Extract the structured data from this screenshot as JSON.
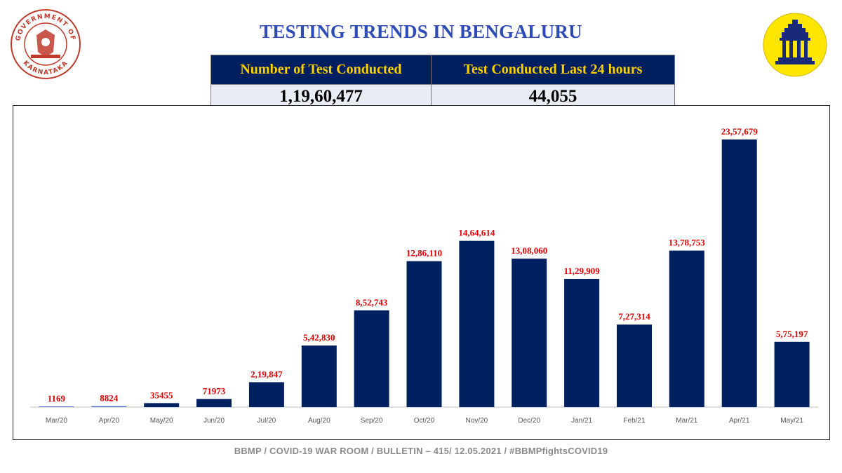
{
  "header": {
    "title": "TESTING TRENDS IN BENGALURU",
    "left_emblem_text_top": "GOVERNMENT OF",
    "left_emblem_text_bottom": "KARNATAKA"
  },
  "stats": {
    "col1_label": "Number of Test Conducted",
    "col2_label": "Test Conducted Last 24 hours",
    "col1_value": "1,19,60,477",
    "col2_value": "44,055"
  },
  "colors": {
    "bar": "#002060",
    "data_label": "#e00000",
    "title": "#2e4bb8",
    "table_header_bg": "#001f5f",
    "table_header_text": "#ffd000"
  },
  "chart_data": {
    "type": "bar",
    "title": "",
    "xlabel": "",
    "ylabel": "",
    "ylim": [
      0,
      2500000
    ],
    "categories": [
      "Mar/20",
      "Apr/20",
      "May/20",
      "Jun/20",
      "Jul/20",
      "Aug/20",
      "Sep/20",
      "Oct/20",
      "Nov/20",
      "Dec/20",
      "Jan/21",
      "Feb/21",
      "Mar/21",
      "Apr/21",
      "May/21"
    ],
    "values": [
      1169,
      8824,
      35455,
      71973,
      219847,
      542830,
      852743,
      1286110,
      1464614,
      1308060,
      1129909,
      727314,
      1378753,
      2357679,
      575197
    ],
    "data_labels": [
      "1169",
      "8824",
      "35455",
      "71973",
      "2,19,847",
      "5,42,830",
      "8,52,743",
      "12,86,110",
      "14,64,614",
      "13,08,060",
      "11,29,909",
      "7,27,314",
      "13,78,753",
      "23,57,679",
      "5,75,197"
    ]
  },
  "footer": {
    "text": "BBMP / COVID-19 WAR ROOM / BULLETIN – 415/ 12.05.2021 / #BBMPfightsCOVID19"
  }
}
